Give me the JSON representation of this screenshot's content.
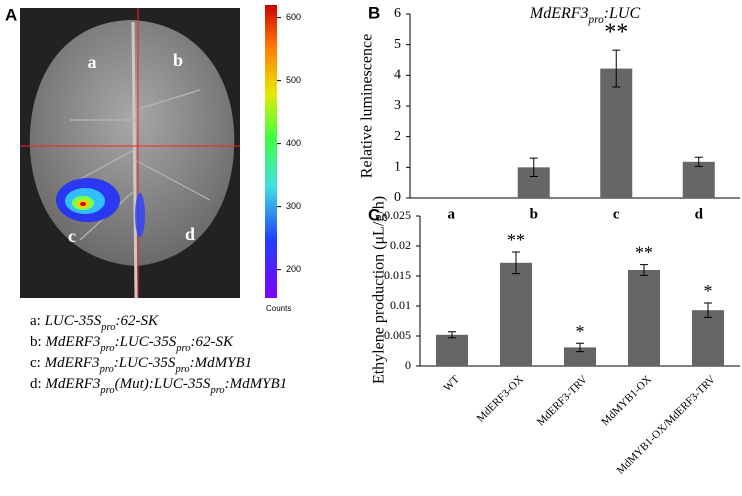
{
  "panels": [
    "A",
    "B",
    "C"
  ],
  "image": {
    "quadrant_labels": [
      "a",
      "b",
      "c",
      "d"
    ],
    "colorbar": {
      "label": "Counts",
      "lim": [
        155,
        620
      ],
      "ticks": [
        200,
        300,
        400,
        500,
        600
      ]
    }
  },
  "legend": [
    [
      "a: ",
      "LUC-35S",
      {
        "sub": "pro"
      },
      ":62-SK"
    ],
    [
      "b: ",
      "MdERF3",
      {
        "sub": "pro"
      },
      ":LUC-35S",
      {
        "sub": "pro"
      },
      ":62-SK"
    ],
    [
      "c: ",
      "MdERF3",
      {
        "sub": "pro"
      },
      ":LUC-35S",
      {
        "sub": "pro"
      },
      ":MdMYB1"
    ],
    [
      "d: ",
      "MdERF3",
      {
        "sub": "pro"
      },
      "(Mut):LUC-35S",
      {
        "sub": "pro"
      },
      ":MdMYB1"
    ]
  ],
  "chart_data": [
    {
      "type": "bar",
      "title": [
        "MdERF3",
        {
          "sub": "pro"
        },
        ":LUC"
      ],
      "y_label": "Relative  luminescence",
      "categories": [
        "a",
        "b",
        "c",
        "d"
      ],
      "values": [
        0,
        1.0,
        4.22,
        1.18
      ],
      "errors": [
        0,
        0.3,
        0.6,
        0.15
      ],
      "annotations": [
        null,
        null,
        "**",
        null
      ],
      "color": "#666666",
      "ylim": [
        0,
        6
      ],
      "yticks": [
        0,
        1,
        2,
        3,
        4,
        5,
        6
      ]
    },
    {
      "type": "bar",
      "y_label": "Ethylene production (μL/g/h)",
      "categories": [
        "WT",
        "MdERF3-OX",
        "MdERF3-TRV",
        "MdMYB1-OX",
        "MdMYB1-OX/MdERF3-TRV"
      ],
      "values": [
        0.0052,
        0.0172,
        0.0031,
        0.016,
        0.0093
      ],
      "errors": [
        0.0005,
        0.0018,
        0.0007,
        0.0009,
        0.0012
      ],
      "annotations": [
        null,
        "**",
        "*",
        "**",
        "*"
      ],
      "color": "#666666",
      "ylim": [
        0,
        0.025
      ],
      "yticks": [
        0,
        0.005,
        0.01,
        0.015,
        0.02,
        0.025
      ]
    }
  ]
}
